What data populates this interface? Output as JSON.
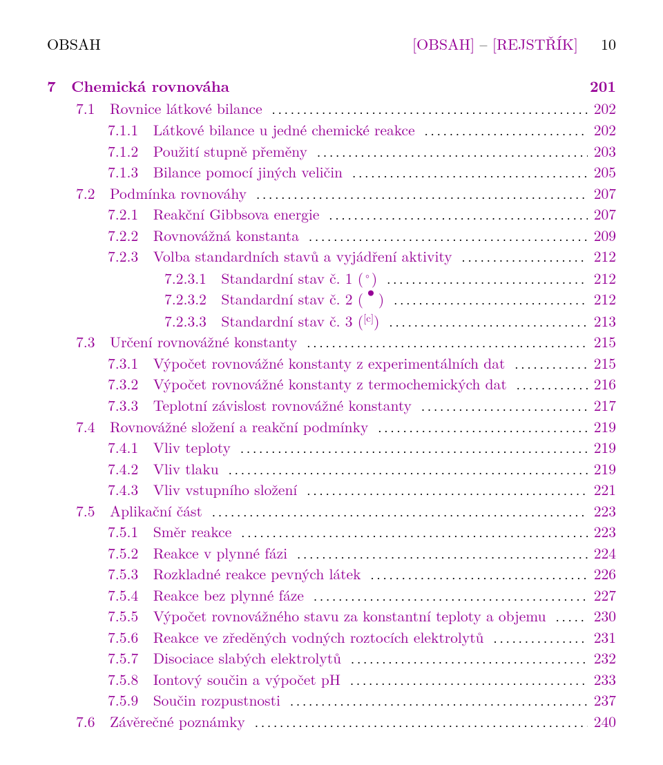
{
  "header": {
    "left": "OBSAH",
    "link1": "[OBSAH]",
    "sep": " – ",
    "link2": "[REJSTŘÍK]",
    "pagenum": "10"
  },
  "chapter": {
    "num": "7",
    "title": "Chemická rovnováha",
    "page": "201"
  },
  "entries": [
    {
      "indent": 1,
      "num": "7.1",
      "text": "Rovnice látkové bilance",
      "page": "202"
    },
    {
      "indent": 2,
      "num": "7.1.1",
      "text": "Látkové bilance u jedné chemické reakce",
      "page": "202"
    },
    {
      "indent": 2,
      "num": "7.1.2",
      "text": "Použití stupně přeměny",
      "page": "203"
    },
    {
      "indent": 2,
      "num": "7.1.3",
      "text": "Bilance pomocí jiných veličin",
      "page": "205"
    },
    {
      "indent": 1,
      "num": "7.2",
      "text": "Podmínka rovnováhy",
      "page": "207"
    },
    {
      "indent": 2,
      "num": "7.2.1",
      "text": "Reakční Gibbsova energie",
      "page": "207"
    },
    {
      "indent": 2,
      "num": "7.2.2",
      "text": "Rovnovážná konstanta",
      "page": "209"
    },
    {
      "indent": 2,
      "num": "7.2.3",
      "text": "Volba standardních stavů a vyjádření aktivity",
      "page": "212"
    },
    {
      "indent": 3,
      "num": "7.2.3.1",
      "text": "Standardní stav č. 1 (",
      "suffix": ")",
      "sym": "circ",
      "page": "212"
    },
    {
      "indent": 3,
      "num": "7.2.3.2",
      "text": "Standardní stav č. 2 (",
      "suffix": ")",
      "sym": "bullet",
      "page": "212"
    },
    {
      "indent": 3,
      "num": "7.2.3.3",
      "text": "Standardní stav č. 3 (",
      "suffix": ")",
      "sym": "c",
      "page": "213"
    },
    {
      "indent": 1,
      "num": "7.3",
      "text": "Určení rovnovážné konstanty",
      "page": "215"
    },
    {
      "indent": 2,
      "num": "7.3.1",
      "text": "Výpočet rovnovážné konstanty z experimentálních dat",
      "page": "215"
    },
    {
      "indent": 2,
      "num": "7.3.2",
      "text": "Výpočet rovnovážné konstanty z termochemických dat",
      "page": "216"
    },
    {
      "indent": 2,
      "num": "7.3.3",
      "text": "Teplotní závislost rovnovážné konstanty",
      "page": "217"
    },
    {
      "indent": 1,
      "num": "7.4",
      "text": "Rovnovážné složení a reakční podmínky",
      "page": "219"
    },
    {
      "indent": 2,
      "num": "7.4.1",
      "text": "Vliv teploty",
      "page": "219"
    },
    {
      "indent": 2,
      "num": "7.4.2",
      "text": "Vliv tlaku",
      "page": "219"
    },
    {
      "indent": 2,
      "num": "7.4.3",
      "text": "Vliv vstupního složení",
      "page": "221"
    },
    {
      "indent": 1,
      "num": "7.5",
      "text": "Aplikační část",
      "page": "223"
    },
    {
      "indent": 2,
      "num": "7.5.1",
      "text": "Směr reakce",
      "page": "223"
    },
    {
      "indent": 2,
      "num": "7.5.2",
      "text": "Reakce v plynné fázi",
      "page": "224"
    },
    {
      "indent": 2,
      "num": "7.5.3",
      "text": "Rozkladné reakce pevných látek",
      "page": "226"
    },
    {
      "indent": 2,
      "num": "7.5.4",
      "text": "Reakce bez plynné fáze",
      "page": "227"
    },
    {
      "indent": 2,
      "num": "7.5.5",
      "text": "Výpočet rovnovážného stavu za konstantní teploty a objemu",
      "page": "230"
    },
    {
      "indent": 2,
      "num": "7.5.6",
      "text": "Reakce ve zředěných vodných roztocích elektrolytů",
      "page": "231"
    },
    {
      "indent": 2,
      "num": "7.5.7",
      "text": "Disociace slabých elektrolytů",
      "page": "232"
    },
    {
      "indent": 2,
      "num": "7.5.8",
      "text": "Iontový součin a výpočet pH",
      "page": "233"
    },
    {
      "indent": 2,
      "num": "7.5.9",
      "text": "Součin rozpustnosti",
      "page": "237"
    },
    {
      "indent": 1,
      "num": "7.6",
      "text": "Závěrečné poznámky",
      "page": "240"
    }
  ],
  "link_color": "#960096",
  "text_color": "#000000"
}
